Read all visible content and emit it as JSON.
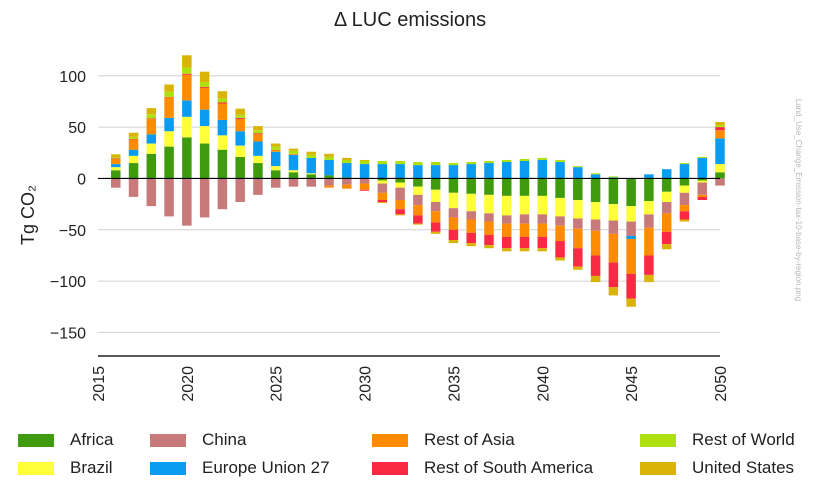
{
  "chart_data": {
    "type": "bar",
    "stacked": true,
    "title": "Δ LUC emissions",
    "ylabel": "Tg CO₂",
    "xlabel": "",
    "xlim": [
      2015,
      2050
    ],
    "ylim": [
      -173,
      130
    ],
    "yticks": [
      100,
      50,
      0,
      -50,
      -100,
      -150
    ],
    "ytick_labels": [
      "100",
      "50",
      "0",
      "−50",
      "−100",
      "−150"
    ],
    "xticks": [
      "2015",
      "2020",
      "2025",
      "2030",
      "2035",
      "2040",
      "2045",
      "2050"
    ],
    "grid": true,
    "legend_position": "bottom",
    "watermark": "Land_Use_Change_Emission-tax-10-base-by-region.png",
    "x": [
      2016,
      2017,
      2018,
      2019,
      2020,
      2021,
      2022,
      2023,
      2024,
      2025,
      2026,
      2027,
      2028,
      2029,
      2030,
      2031,
      2032,
      2033,
      2034,
      2035,
      2036,
      2037,
      2038,
      2039,
      2040,
      2041,
      2042,
      2043,
      2044,
      2045,
      2046,
      2047,
      2048,
      2049,
      2050
    ],
    "series": [
      {
        "name": "Africa",
        "color": "#3f9a0e",
        "values": [
          8,
          15,
          24,
          31,
          40,
          34,
          28,
          21,
          15,
          8,
          6,
          4,
          3,
          1,
          0,
          -2,
          -4,
          -8,
          -11,
          -14,
          -15,
          -16,
          -17,
          -17,
          -17,
          -19,
          -21,
          -23,
          -25,
          -27,
          -22,
          -13,
          -7,
          -2,
          6
        ]
      },
      {
        "name": "Brazil",
        "color": "#ffff3a",
        "values": [
          3,
          7,
          10,
          15,
          20,
          17,
          14,
          11,
          7,
          4,
          2,
          1,
          0,
          0,
          0,
          -3,
          -5,
          -8,
          -12,
          -15,
          -17,
          -18,
          -19,
          -18,
          -18,
          -18,
          -18,
          -17,
          -16,
          -15,
          -13,
          -10,
          -7,
          -2,
          8
        ]
      },
      {
        "name": "China",
        "color": "#c87a7a",
        "values": [
          -9,
          -18,
          -27,
          -37,
          -46,
          -38,
          -30,
          -23,
          -16,
          -9,
          -8,
          -8,
          -7,
          -6,
          -5,
          -9,
          -12,
          -10,
          -9,
          -9,
          -8,
          -8,
          -8,
          -9,
          -9,
          -9,
          -10,
          -11,
          -13,
          -14,
          -13,
          -11,
          -12,
          -12,
          -7
        ]
      },
      {
        "name": "Europe Union 27",
        "color": "#0a9cf0",
        "values": [
          3,
          6,
          9,
          13,
          16,
          16,
          15,
          14,
          14,
          14,
          15,
          15,
          15,
          14,
          14,
          14,
          14,
          13,
          13,
          13,
          14,
          15,
          16,
          17,
          18,
          16,
          11,
          4,
          1,
          -3,
          4,
          9,
          14,
          20,
          25
        ]
      },
      {
        "name": "Rest of Asia",
        "color": "#ff8c00",
        "values": [
          5,
          10,
          15,
          20,
          25,
          21,
          16,
          12,
          7,
          2,
          1,
          0,
          -2,
          -4,
          -6,
          -7,
          -9,
          -10,
          -11,
          -12,
          -13,
          -13,
          -13,
          -13,
          -13,
          -15,
          -19,
          -24,
          -28,
          -34,
          -27,
          -18,
          -6,
          -2,
          8
        ]
      },
      {
        "name": "Rest of South America",
        "color": "#fb2943",
        "values": [
          0.5,
          0.5,
          0.5,
          0.5,
          1,
          1,
          1,
          1,
          1,
          0,
          0,
          0,
          0,
          0,
          -1,
          -2,
          -5,
          -8,
          -9,
          -10,
          -10,
          -10,
          -11,
          -11,
          -11,
          -16,
          -18,
          -20,
          -24,
          -24,
          -19,
          -12,
          -8,
          -3,
          3
        ]
      },
      {
        "name": "Rest of World",
        "color": "#aee00f",
        "values": [
          1,
          2,
          4,
          5,
          6,
          5,
          4,
          3,
          3,
          3,
          3,
          3,
          3,
          3,
          3,
          3,
          3,
          3,
          3,
          2,
          2,
          2,
          2,
          2,
          2,
          2,
          1,
          1,
          1,
          0,
          0,
          0,
          1,
          1,
          2
        ]
      },
      {
        "name": "United States",
        "color": "#d9b406",
        "values": [
          3,
          4,
          6,
          7,
          12,
          10,
          7,
          6,
          4,
          3,
          2,
          3,
          3,
          2,
          1,
          -1,
          -1,
          -1,
          -2,
          -3,
          -3,
          -3,
          -3,
          -3,
          -3,
          -3,
          -3,
          -6,
          -8,
          -8,
          -7,
          -5,
          -2,
          0,
          3
        ]
      }
    ]
  }
}
